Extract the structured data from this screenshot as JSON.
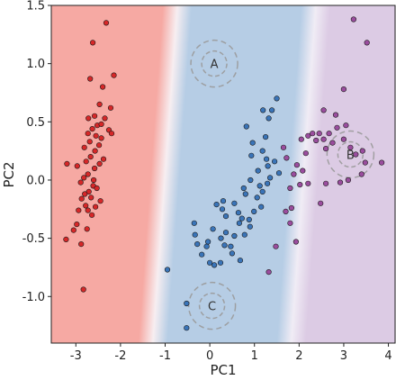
{
  "chart_data": {
    "type": "scatter",
    "title": "",
    "xlabel": "PC1",
    "ylabel": "PC2",
    "xlim": [
      -3.55,
      4.15
    ],
    "ylim": [
      -1.4,
      1.5
    ],
    "xticks": [
      -3,
      -2,
      -1,
      0,
      1,
      2,
      3,
      4
    ],
    "yticks": [
      -1.0,
      -0.5,
      0.0,
      0.5,
      1.0,
      1.5
    ],
    "xtick_labels": [
      "-3",
      "-2",
      "-1",
      "0",
      "1",
      "2",
      "3",
      "4"
    ],
    "ytick_labels": [
      "-1.0",
      "-0.5",
      "0.0",
      "0.5",
      "1.0",
      "1.5"
    ],
    "grid": false,
    "background_regions": {
      "colors": [
        "#f6a9a3",
        "#b6cde5",
        "#dccbe4"
      ],
      "boundary_1_x_at_ylim": [
        -1.55,
        -1.0
      ],
      "boundary_2_x_at_ylim": [
        1.6,
        2.05
      ]
    },
    "series": [
      {
        "color": "#d62728",
        "points": [
          [
            -2.62,
            1.18
          ],
          [
            -2.32,
            1.35
          ],
          [
            -2.68,
            0.87
          ],
          [
            -2.15,
            0.9
          ],
          [
            -2.4,
            0.8
          ],
          [
            -2.22,
            0.62
          ],
          [
            -2.47,
            0.65
          ],
          [
            -2.58,
            0.55
          ],
          [
            -2.72,
            0.53
          ],
          [
            -2.35,
            0.53
          ],
          [
            -2.52,
            0.47
          ],
          [
            -2.43,
            0.48
          ],
          [
            -2.63,
            0.44
          ],
          [
            -2.26,
            0.43
          ],
          [
            -2.2,
            0.4
          ],
          [
            -2.73,
            0.4
          ],
          [
            -2.55,
            0.38
          ],
          [
            -2.43,
            0.36
          ],
          [
            -2.69,
            0.33
          ],
          [
            -2.48,
            0.3
          ],
          [
            -2.81,
            0.28
          ],
          [
            -2.57,
            0.25
          ],
          [
            -2.67,
            0.2
          ],
          [
            -2.38,
            0.18
          ],
          [
            -2.77,
            0.16
          ],
          [
            -2.47,
            0.14
          ],
          [
            -3.2,
            0.14
          ],
          [
            -2.97,
            0.12
          ],
          [
            -2.58,
            0.1
          ],
          [
            -2.73,
            0.05
          ],
          [
            -2.82,
            0.02
          ],
          [
            -2.6,
            0.0
          ],
          [
            -2.89,
            -0.02
          ],
          [
            -2.61,
            -0.05
          ],
          [
            -2.53,
            -0.07
          ],
          [
            -2.71,
            -0.1
          ],
          [
            -2.8,
            -0.12
          ],
          [
            -2.66,
            -0.15
          ],
          [
            -2.87,
            -0.16
          ],
          [
            -2.45,
            -0.18
          ],
          [
            -2.78,
            -0.22
          ],
          [
            -2.56,
            -0.23
          ],
          [
            -2.73,
            -0.26
          ],
          [
            -2.94,
            -0.26
          ],
          [
            -2.64,
            -0.3
          ],
          [
            -2.98,
            -0.38
          ],
          [
            -2.75,
            -0.42
          ],
          [
            -3.05,
            -0.43
          ],
          [
            -2.88,
            -0.55
          ],
          [
            -3.22,
            -0.51
          ],
          [
            -2.83,
            -0.94
          ]
        ]
      },
      {
        "color": "#3a74b8",
        "points": [
          [
            -0.35,
            -0.37
          ],
          [
            -0.33,
            -0.47
          ],
          [
            -0.04,
            -0.53
          ],
          [
            -0.28,
            -0.55
          ],
          [
            -0.07,
            -0.57
          ],
          [
            -0.18,
            -0.64
          ],
          [
            0.0,
            -0.71
          ],
          [
            0.24,
            -0.71
          ],
          [
            0.1,
            -0.73
          ],
          [
            -0.95,
            -0.77
          ],
          [
            0.5,
            -0.63
          ],
          [
            0.68,
            -0.69
          ],
          [
            0.33,
            -0.56
          ],
          [
            0.47,
            -0.57
          ],
          [
            0.55,
            -0.48
          ],
          [
            0.25,
            -0.5
          ],
          [
            0.36,
            -0.45
          ],
          [
            0.78,
            -0.47
          ],
          [
            0.9,
            -0.4
          ],
          [
            0.07,
            -0.42
          ],
          [
            0.66,
            -0.37
          ],
          [
            0.72,
            -0.33
          ],
          [
            0.88,
            -0.34
          ],
          [
            0.36,
            -0.31
          ],
          [
            0.64,
            -0.28
          ],
          [
            0.55,
            -0.2
          ],
          [
            0.3,
            -0.18
          ],
          [
            0.15,
            -0.21
          ],
          [
            0.28,
            -0.25
          ],
          [
            1.15,
            -0.23
          ],
          [
            0.99,
            -0.27
          ],
          [
            1.06,
            -0.15
          ],
          [
            0.8,
            -0.12
          ],
          [
            1.18,
            -0.1
          ],
          [
            0.76,
            -0.07
          ],
          [
            1.29,
            -0.03
          ],
          [
            1.12,
            -0.05
          ],
          [
            0.91,
            0.0
          ],
          [
            1.35,
            0.02
          ],
          [
            1.55,
            0.06
          ],
          [
            1.08,
            0.08
          ],
          [
            1.3,
            0.12
          ],
          [
            1.45,
            0.16
          ],
          [
            1.27,
            0.18
          ],
          [
            0.93,
            0.21
          ],
          [
            1.18,
            0.25
          ],
          [
            0.96,
            0.32
          ],
          [
            1.25,
            0.37
          ],
          [
            0.82,
            0.46
          ],
          [
            1.32,
            0.53
          ],
          [
            1.19,
            0.6
          ],
          [
            1.39,
            0.6
          ],
          [
            1.5,
            0.7
          ],
          [
            -0.52,
            -1.06
          ],
          [
            -0.52,
            -1.27
          ]
        ]
      },
      {
        "color": "#9a4d9e",
        "points": [
          [
            1.65,
            0.28
          ],
          [
            1.72,
            0.19
          ],
          [
            1.95,
            0.13
          ],
          [
            1.88,
            0.05
          ],
          [
            2.08,
            0.08
          ],
          [
            2.15,
            0.23
          ],
          [
            2.05,
            0.35
          ],
          [
            2.2,
            0.38
          ],
          [
            2.3,
            0.4
          ],
          [
            2.45,
            0.4
          ],
          [
            2.38,
            0.34
          ],
          [
            2.55,
            0.35
          ],
          [
            2.6,
            0.27
          ],
          [
            2.75,
            0.32
          ],
          [
            2.67,
            0.4
          ],
          [
            2.85,
            0.45
          ],
          [
            2.82,
            0.56
          ],
          [
            3.05,
            0.47
          ],
          [
            3.0,
            0.35
          ],
          [
            3.15,
            0.28
          ],
          [
            3.27,
            0.22
          ],
          [
            3.42,
            0.25
          ],
          [
            3.48,
            0.15
          ],
          [
            3.4,
            0.05
          ],
          [
            3.1,
            0.0
          ],
          [
            2.92,
            -0.02
          ],
          [
            2.6,
            -0.03
          ],
          [
            2.2,
            -0.03
          ],
          [
            2.02,
            -0.04
          ],
          [
            1.8,
            -0.07
          ],
          [
            2.48,
            -0.2
          ],
          [
            1.83,
            -0.24
          ],
          [
            1.7,
            -0.27
          ],
          [
            1.8,
            -0.37
          ],
          [
            1.93,
            -0.53
          ],
          [
            1.48,
            -0.57
          ],
          [
            1.32,
            -0.79
          ],
          [
            2.55,
            0.6
          ],
          [
            3.0,
            0.78
          ],
          [
            3.85,
            0.15
          ],
          [
            3.52,
            1.18
          ],
          [
            3.22,
            1.38
          ]
        ]
      }
    ],
    "annotations": [
      {
        "label": "A",
        "x": 0.1,
        "y": 1.0
      },
      {
        "label": "B",
        "x": 3.15,
        "y": 0.22
      },
      {
        "label": "C",
        "x": 0.05,
        "y": -1.08
      }
    ]
  }
}
